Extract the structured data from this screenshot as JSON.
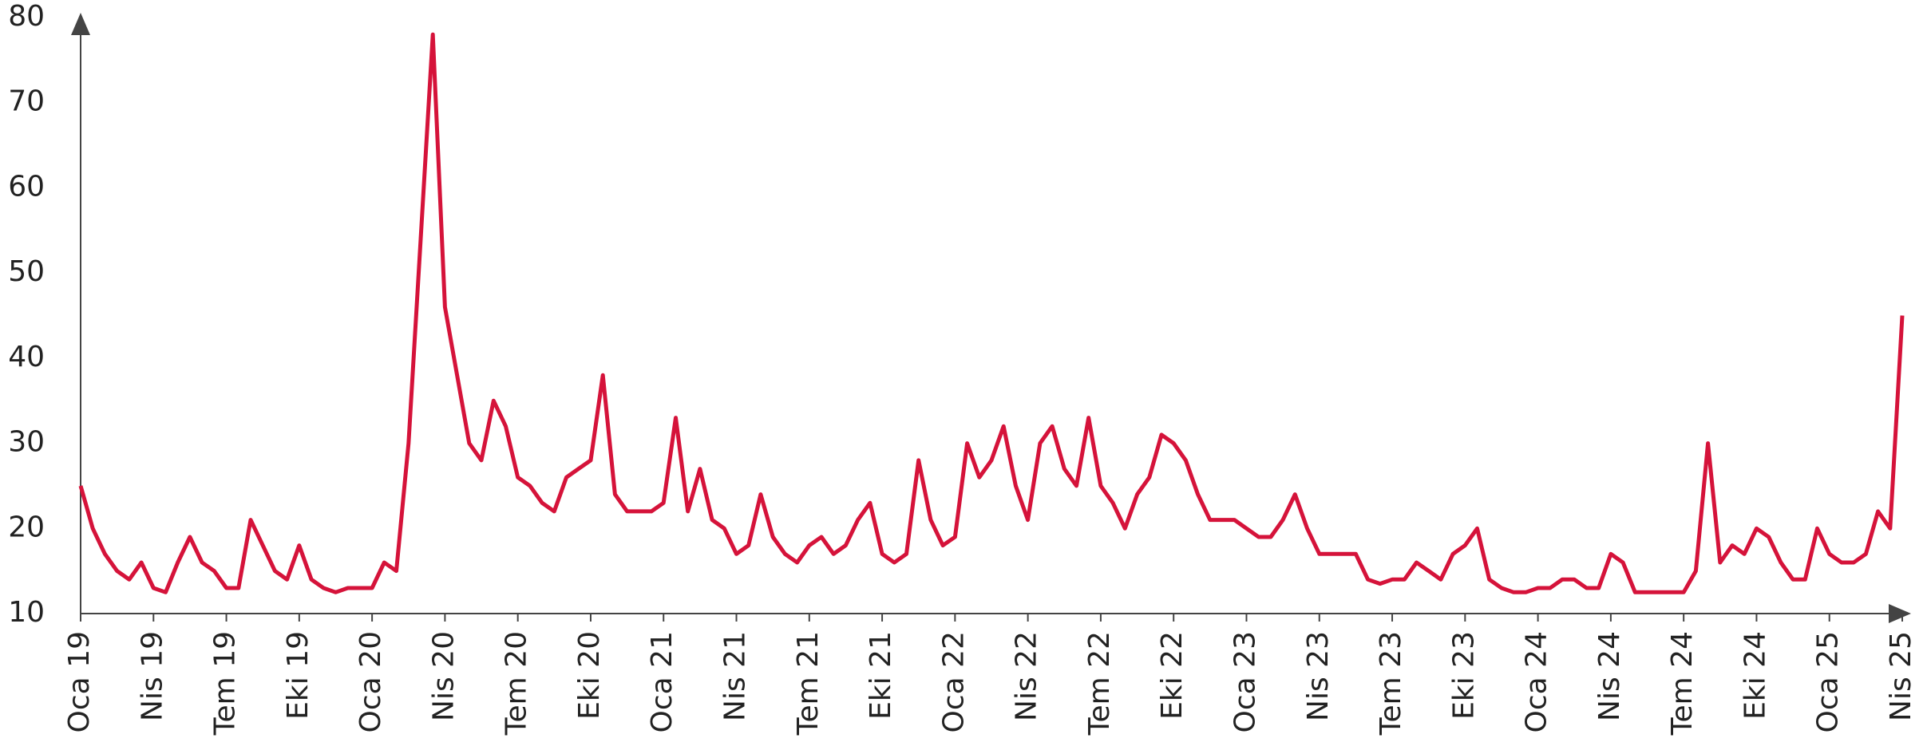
{
  "chart_data": {
    "type": "line",
    "categories": [
      "Oca 19",
      null,
      null,
      null,
      null,
      null,
      "Nis 19",
      null,
      null,
      null,
      null,
      null,
      "Tem 19",
      null,
      null,
      null,
      null,
      null,
      "Eki 19",
      null,
      null,
      null,
      null,
      null,
      "Oca 20",
      null,
      null,
      null,
      null,
      null,
      "Nis 20",
      null,
      null,
      null,
      null,
      null,
      "Tem 20",
      null,
      null,
      null,
      null,
      null,
      "Eki 20",
      null,
      null,
      null,
      null,
      null,
      "Oca 21",
      null,
      null,
      null,
      null,
      null,
      "Nis 21",
      null,
      null,
      null,
      null,
      null,
      "Tem 21",
      null,
      null,
      null,
      null,
      null,
      "Eki 21",
      null,
      null,
      null,
      null,
      null,
      "Oca 22",
      null,
      null,
      null,
      null,
      null,
      "Nis 22",
      null,
      null,
      null,
      null,
      null,
      "Tem 22",
      null,
      null,
      null,
      null,
      null,
      "Eki 22",
      null,
      null,
      null,
      null,
      null,
      "Oca 23",
      null,
      null,
      null,
      null,
      null,
      "Nis 23",
      null,
      null,
      null,
      null,
      null,
      "Tem 23",
      null,
      null,
      null,
      null,
      null,
      "Eki 23",
      null,
      null,
      null,
      null,
      null,
      "Oca 24",
      null,
      null,
      null,
      null,
      null,
      "Nis 24",
      null,
      null,
      null,
      null,
      null,
      "Tem 24",
      null,
      null,
      null,
      null,
      null,
      "Eki 24",
      null,
      null,
      null,
      null,
      null,
      "Oca 25",
      null,
      null,
      null,
      null,
      null,
      "Nis 25"
    ],
    "values": [
      25,
      20,
      17,
      15,
      14,
      16,
      13,
      12.5,
      16,
      19,
      16,
      15,
      13,
      13,
      21,
      18,
      15,
      14,
      18,
      14,
      13,
      12.5,
      13,
      13,
      13,
      16,
      15,
      30,
      54,
      78,
      46,
      38,
      30,
      28,
      35,
      32,
      26,
      25,
      23,
      22,
      26,
      27,
      28,
      38,
      24,
      22,
      22,
      22,
      23,
      33,
      22,
      27,
      21,
      20,
      17,
      18,
      24,
      19,
      17,
      16,
      18,
      19,
      17,
      18,
      21,
      23,
      17,
      16,
      17,
      28,
      21,
      18,
      19,
      30,
      26,
      28,
      32,
      25,
      21,
      30,
      32,
      27,
      25,
      33,
      25,
      23,
      20,
      24,
      26,
      31,
      30,
      28,
      24,
      21,
      21,
      21,
      20,
      19,
      19,
      21,
      24,
      20,
      17,
      17,
      17,
      17,
      14,
      13.5,
      14,
      14,
      16,
      15,
      14,
      17,
      18,
      20,
      14,
      13,
      12.5,
      12.5,
      13,
      13,
      14,
      14,
      13,
      13,
      17,
      16,
      12.5,
      12.5,
      12.5,
      12.5,
      12.5,
      15,
      30,
      16,
      18,
      17,
      20,
      19,
      16,
      14,
      14,
      20,
      17,
      16,
      16,
      17,
      22,
      20,
      45
    ],
    "color": "#d5133a",
    "ylim": [
      10,
      80
    ],
    "yticks": [
      10,
      20,
      30,
      40,
      50,
      60,
      70,
      80
    ],
    "grid": false
  }
}
